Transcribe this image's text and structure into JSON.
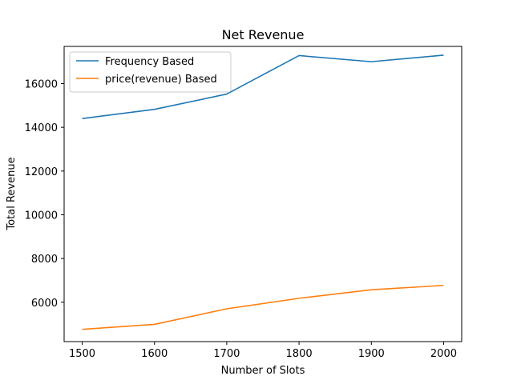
{
  "chart_data": {
    "type": "line",
    "title": "Net Revenue",
    "xlabel": "Number of Slots",
    "ylabel": "Total Revenue",
    "x": [
      1500,
      1600,
      1700,
      1800,
      1900,
      2000
    ],
    "xlim": [
      1475,
      2025
    ],
    "ylim": [
      4200,
      17700
    ],
    "xticks": [
      1500,
      1600,
      1700,
      1800,
      1900,
      2000
    ],
    "yticks": [
      6000,
      8000,
      10000,
      12000,
      14000,
      16000
    ],
    "grid": false,
    "legend_position": "top-left",
    "series": [
      {
        "name": "Frequency Based",
        "color": "#1f77b4",
        "values": [
          14400,
          14820,
          15520,
          17280,
          17000,
          17300
        ]
      },
      {
        "name": "price(revenue) Based",
        "color": "#ff7f0e",
        "values": [
          4760,
          4990,
          5700,
          6180,
          6570,
          6770
        ]
      }
    ]
  }
}
